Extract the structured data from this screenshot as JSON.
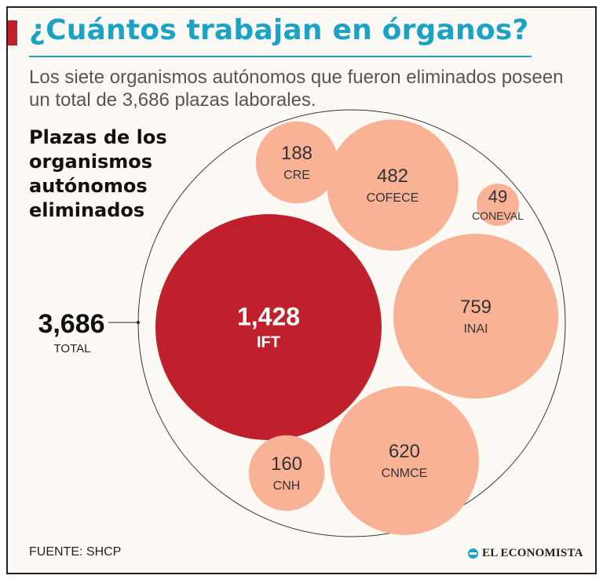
{
  "header": {
    "title": "¿Cuántos trabajan en órganos?",
    "subtitle": "Los siete organismos autónomos que fueron eliminados poseen un total de 3,686 plazas laborales."
  },
  "chart_heading": "Plazas de los organismos autónomos eliminados",
  "colors": {
    "accent": "#c0202b",
    "title": "#1aa3c4",
    "bubble_major": "#c0202b",
    "bubble_minor": "#f9b295"
  },
  "chart_data": {
    "type": "bubble",
    "title": "Plazas de los organismos autónomos eliminados",
    "total": {
      "value": "3,686",
      "label": "TOTAL"
    },
    "categories": [
      "IFT",
      "INAI",
      "CNMCE",
      "COFECE",
      "CRE",
      "CNH",
      "CONEVAL"
    ],
    "values": [
      1428,
      759,
      620,
      482,
      188,
      160,
      49
    ],
    "labels": [
      "1,428",
      "759",
      "620",
      "482",
      "188",
      "160",
      "49"
    ],
    "highlight": "IFT"
  },
  "footer": {
    "source": "FUENTE: SHCP",
    "logo": "EL ECONOMISTA"
  }
}
